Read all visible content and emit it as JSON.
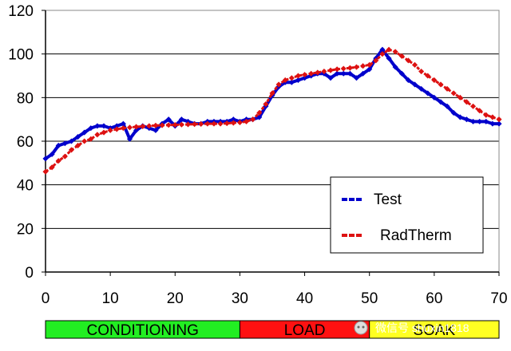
{
  "chart_data": {
    "type": "line",
    "title": "",
    "xlabel": "",
    "ylabel": "",
    "xlim": [
      0,
      70
    ],
    "ylim": [
      0,
      120
    ],
    "x_ticks": [
      "0",
      "10",
      "20",
      "30",
      "40",
      "50",
      "60",
      "70"
    ],
    "y_ticks": [
      "0",
      "20",
      "40",
      "60",
      "80",
      "100",
      "120"
    ],
    "grid": "horizontal",
    "legend_position": "bottom-right",
    "series": [
      {
        "name": "Test",
        "color": "#0000cc",
        "x": [
          0,
          1,
          2,
          3,
          4,
          5,
          6,
          7,
          8,
          9,
          10,
          11,
          12,
          13,
          14,
          15,
          16,
          17,
          18,
          19,
          20,
          21,
          22,
          23,
          24,
          25,
          26,
          27,
          28,
          29,
          30,
          31,
          32,
          33,
          34,
          35,
          36,
          37,
          38,
          39,
          40,
          41,
          42,
          43,
          44,
          45,
          46,
          47,
          48,
          49,
          50,
          51,
          52,
          53,
          54,
          55,
          56,
          57,
          58,
          59,
          60,
          61,
          62,
          63,
          64,
          65,
          66,
          67,
          68,
          69,
          70
        ],
        "y": [
          52,
          54,
          58,
          59,
          60,
          62,
          64,
          66,
          67,
          67,
          66,
          67,
          68,
          61,
          65,
          67,
          66,
          65,
          68,
          70,
          67,
          70,
          69,
          68,
          68,
          69,
          69,
          69,
          69,
          70,
          69,
          70,
          70,
          71,
          76,
          81,
          85,
          87,
          87,
          88,
          89,
          90,
          91,
          91,
          89,
          91,
          91,
          91,
          89,
          91,
          93,
          98,
          102,
          98,
          94,
          91,
          88,
          86,
          84,
          82,
          80,
          78,
          76,
          73,
          71,
          70,
          69,
          69,
          69,
          68,
          68
        ]
      },
      {
        "name": "RadTherm",
        "color": "#dd1111",
        "x": [
          0,
          1,
          2,
          3,
          4,
          5,
          6,
          7,
          8,
          9,
          10,
          11,
          12,
          13,
          14,
          15,
          16,
          17,
          18,
          19,
          20,
          21,
          22,
          23,
          24,
          25,
          26,
          27,
          28,
          29,
          30,
          31,
          32,
          33,
          34,
          35,
          36,
          37,
          38,
          39,
          40,
          41,
          42,
          43,
          44,
          45,
          46,
          47,
          48,
          49,
          50,
          51,
          52,
          53,
          54,
          55,
          56,
          57,
          58,
          59,
          60,
          61,
          62,
          63,
          64,
          65,
          66,
          67,
          68,
          69,
          70
        ],
        "y": [
          46,
          48,
          51,
          53,
          56,
          58,
          60,
          61,
          63,
          64,
          65,
          65.5,
          66,
          66.3,
          66.6,
          66.8,
          67,
          67.2,
          67.3,
          67.4,
          67.5,
          67.6,
          67.7,
          67.8,
          67.9,
          68,
          68,
          68,
          68.2,
          68.4,
          68.6,
          69,
          70,
          73,
          77,
          82,
          86,
          88,
          89,
          90,
          90.5,
          91,
          91.5,
          92,
          92.5,
          93,
          93.3,
          93.6,
          94,
          94.5,
          95,
          97,
          100,
          102,
          101,
          99,
          97,
          95,
          92,
          90,
          88,
          86,
          84,
          82,
          80,
          78,
          76,
          74,
          72,
          71,
          70
        ]
      }
    ],
    "phases": [
      {
        "label": "CONDITIONING",
        "x_start": 0,
        "x_end": 30,
        "color": "#22ee22"
      },
      {
        "label": "LOAD",
        "x_start": 30,
        "x_end": 50,
        "color": "#ff1111"
      },
      {
        "label": "SOAK",
        "x_start": 50,
        "x_end": 70,
        "color": "#ffff22"
      }
    ]
  },
  "watermark": {
    "text": "微信号 shuxin1818",
    "icon": "wechat-icon"
  }
}
